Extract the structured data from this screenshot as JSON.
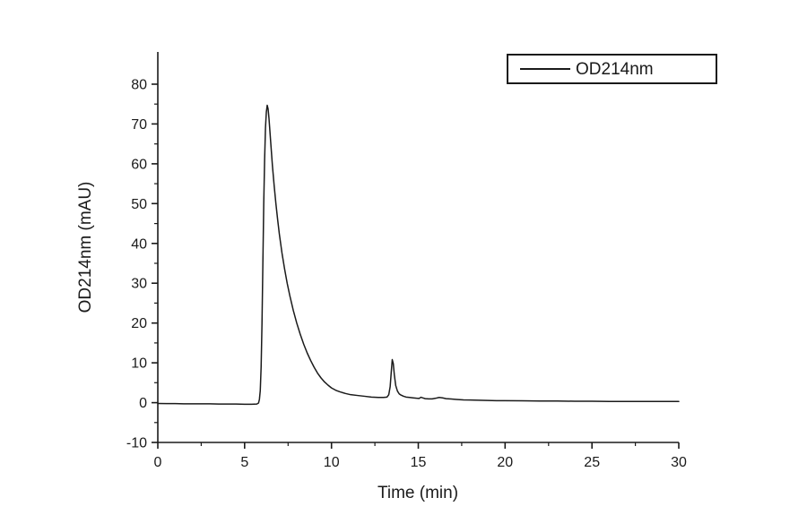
{
  "figure": {
    "background": "#ffffff",
    "line_color": "#1a1a1a",
    "text_color": "#1a1a1a"
  },
  "legend": {
    "label": "OD214nm"
  },
  "chart_data": {
    "type": "line",
    "title": "",
    "xlabel": "Time (min)",
    "ylabel": "OD214nm (mAU)",
    "xlim": [
      0,
      30
    ],
    "ylim": [
      -10,
      80
    ],
    "x_ticks": [
      0,
      5,
      10,
      15,
      20,
      25,
      30
    ],
    "y_ticks": [
      -10,
      0,
      10,
      20,
      30,
      40,
      50,
      60,
      70,
      80
    ],
    "x_minor_ticks": [
      2.5,
      7.5,
      12.5,
      17.5,
      22.5,
      27.5
    ],
    "y_minor_ticks": [
      -5,
      5,
      15,
      25,
      35,
      45,
      55,
      65,
      75
    ],
    "grid": false,
    "legend_position": "top-right",
    "annotations": {
      "main_peak": {
        "time_min": 6.3,
        "height_mAU": 74.7
      },
      "secondary_peak": {
        "time_min": 13.5,
        "height_mAU": 10.8
      }
    },
    "series": [
      {
        "name": "OD214nm",
        "color": "#1a1a1a",
        "points": [
          [
            0,
            -0.2
          ],
          [
            0.5,
            -0.25
          ],
          [
            1,
            -0.25
          ],
          [
            1.5,
            -0.3
          ],
          [
            2,
            -0.3
          ],
          [
            2.5,
            -0.3
          ],
          [
            3,
            -0.3
          ],
          [
            3.5,
            -0.35
          ],
          [
            4,
            -0.35
          ],
          [
            4.5,
            -0.35
          ],
          [
            5,
            -0.4
          ],
          [
            5.4,
            -0.4
          ],
          [
            5.7,
            -0.35
          ],
          [
            5.8,
            -0.1
          ],
          [
            5.85,
            0.8
          ],
          [
            5.9,
            3
          ],
          [
            5.95,
            9
          ],
          [
            6.0,
            20
          ],
          [
            6.05,
            35
          ],
          [
            6.1,
            50
          ],
          [
            6.15,
            61
          ],
          [
            6.2,
            69
          ],
          [
            6.25,
            73
          ],
          [
            6.3,
            74.7
          ],
          [
            6.35,
            73.8
          ],
          [
            6.4,
            71.5
          ],
          [
            6.45,
            68.5
          ],
          [
            6.5,
            65.5
          ],
          [
            6.6,
            59.5
          ],
          [
            6.7,
            54.5
          ],
          [
            6.8,
            50
          ],
          [
            6.9,
            46
          ],
          [
            7.0,
            42.3
          ],
          [
            7.15,
            37.6
          ],
          [
            7.3,
            33.6
          ],
          [
            7.45,
            30
          ],
          [
            7.6,
            26.9
          ],
          [
            7.8,
            23.2
          ],
          [
            8.0,
            20
          ],
          [
            8.2,
            17.2
          ],
          [
            8.4,
            14.7
          ],
          [
            8.6,
            12.5
          ],
          [
            8.8,
            10.6
          ],
          [
            9.0,
            8.9
          ],
          [
            9.2,
            7.4
          ],
          [
            9.4,
            6.2
          ],
          [
            9.6,
            5.2
          ],
          [
            9.8,
            4.4
          ],
          [
            10.0,
            3.7
          ],
          [
            10.25,
            3.1
          ],
          [
            10.5,
            2.7
          ],
          [
            10.8,
            2.3
          ],
          [
            11.1,
            2.0
          ],
          [
            11.5,
            1.8
          ],
          [
            11.9,
            1.6
          ],
          [
            12.3,
            1.4
          ],
          [
            12.7,
            1.3
          ],
          [
            13.0,
            1.3
          ],
          [
            13.2,
            1.4
          ],
          [
            13.3,
            2.0
          ],
          [
            13.38,
            4.0
          ],
          [
            13.44,
            7.5
          ],
          [
            13.5,
            10.8
          ],
          [
            13.56,
            9.8
          ],
          [
            13.62,
            7.0
          ],
          [
            13.7,
            4.3
          ],
          [
            13.8,
            2.9
          ],
          [
            13.9,
            2.2
          ],
          [
            14.0,
            1.9
          ],
          [
            14.15,
            1.6
          ],
          [
            14.3,
            1.4
          ],
          [
            14.5,
            1.3
          ],
          [
            14.7,
            1.2
          ],
          [
            14.9,
            1.1
          ],
          [
            15.05,
            1.05
          ],
          [
            15.15,
            1.35
          ],
          [
            15.25,
            1.2
          ],
          [
            15.4,
            1.0
          ],
          [
            15.6,
            0.95
          ],
          [
            15.8,
            0.95
          ],
          [
            16.0,
            1.1
          ],
          [
            16.2,
            1.3
          ],
          [
            16.4,
            1.2
          ],
          [
            16.6,
            1.0
          ],
          [
            16.9,
            0.9
          ],
          [
            17.2,
            0.8
          ],
          [
            17.6,
            0.7
          ],
          [
            18.0,
            0.65
          ],
          [
            18.5,
            0.6
          ],
          [
            19.0,
            0.55
          ],
          [
            19.5,
            0.5
          ],
          [
            20.0,
            0.5
          ],
          [
            21,
            0.45
          ],
          [
            22,
            0.4
          ],
          [
            23,
            0.4
          ],
          [
            24,
            0.35
          ],
          [
            25,
            0.35
          ],
          [
            26,
            0.3
          ],
          [
            27,
            0.3
          ],
          [
            28,
            0.3
          ],
          [
            29,
            0.3
          ],
          [
            30,
            0.3
          ]
        ]
      }
    ]
  }
}
